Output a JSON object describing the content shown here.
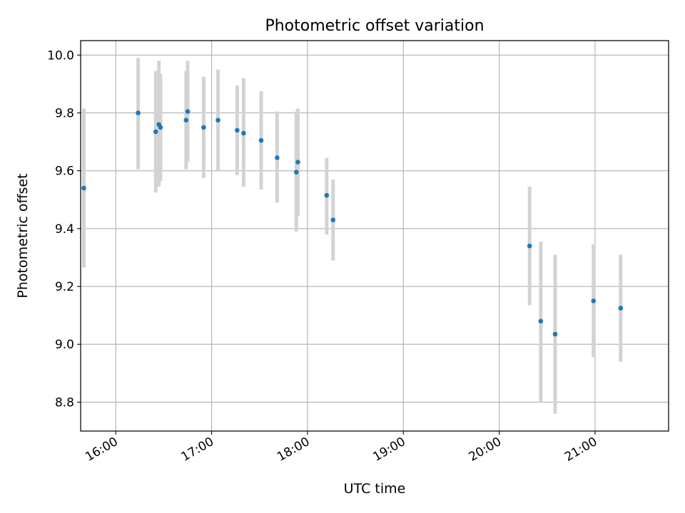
{
  "chart_data": {
    "type": "scatter",
    "title": "Photometric offset variation",
    "xlabel": "UTC time",
    "ylabel": "Photometric offset",
    "x_ticks": [
      "16:00",
      "17:00",
      "18:00",
      "19:00",
      "20:00",
      "21:00"
    ],
    "y_ticks": [
      "8.8",
      "9.0",
      "9.2",
      "9.4",
      "9.6",
      "9.8",
      "10.0"
    ],
    "xlim": [
      "15:38",
      "21:46"
    ],
    "ylim": [
      8.7,
      10.05
    ],
    "grid": true,
    "colors": {
      "points": "#1f77b4",
      "error_bars": "#d3d3d3",
      "grid": "#b0b0b0"
    },
    "series": [
      {
        "points": [
          {
            "x": "15:40",
            "y": 9.54,
            "err_low": 9.265,
            "err_high": 9.815
          },
          {
            "x": "16:14",
            "y": 9.8,
            "err_low": 9.605,
            "err_high": 9.99
          },
          {
            "x": "16:25",
            "y": 9.735,
            "err_low": 9.525,
            "err_high": 9.945
          },
          {
            "x": "16:27",
            "y": 9.76,
            "err_low": 9.545,
            "err_high": 9.98
          },
          {
            "x": "16:28",
            "y": 9.75,
            "err_low": 9.565,
            "err_high": 9.935
          },
          {
            "x": "16:44",
            "y": 9.775,
            "err_low": 9.605,
            "err_high": 9.945
          },
          {
            "x": "16:45",
            "y": 9.805,
            "err_low": 9.63,
            "err_high": 9.98
          },
          {
            "x": "16:55",
            "y": 9.75,
            "err_low": 9.575,
            "err_high": 9.925
          },
          {
            "x": "17:04",
            "y": 9.775,
            "err_low": 9.6,
            "err_high": 9.95
          },
          {
            "x": "17:16",
            "y": 9.74,
            "err_low": 9.585,
            "err_high": 9.895
          },
          {
            "x": "17:20",
            "y": 9.73,
            "err_low": 9.545,
            "err_high": 9.92
          },
          {
            "x": "17:31",
            "y": 9.705,
            "err_low": 9.535,
            "err_high": 9.875
          },
          {
            "x": "17:41",
            "y": 9.645,
            "err_low": 9.49,
            "err_high": 9.805
          },
          {
            "x": "17:53",
            "y": 9.595,
            "err_low": 9.39,
            "err_high": 9.805
          },
          {
            "x": "17:54",
            "y": 9.63,
            "err_low": 9.445,
            "err_high": 9.815
          },
          {
            "x": "18:12",
            "y": 9.515,
            "err_low": 9.38,
            "err_high": 9.645
          },
          {
            "x": "18:16",
            "y": 9.43,
            "err_low": 9.29,
            "err_high": 9.57
          },
          {
            "x": "20:19",
            "y": 9.34,
            "err_low": 9.135,
            "err_high": 9.545
          },
          {
            "x": "20:26",
            "y": 9.08,
            "err_low": 8.8,
            "err_high": 9.355
          },
          {
            "x": "20:35",
            "y": 9.035,
            "err_low": 8.76,
            "err_high": 9.31
          },
          {
            "x": "20:59",
            "y": 9.15,
            "err_low": 8.955,
            "err_high": 9.345
          },
          {
            "x": "21:16",
            "y": 9.125,
            "err_low": 8.94,
            "err_high": 9.31
          }
        ]
      }
    ]
  }
}
